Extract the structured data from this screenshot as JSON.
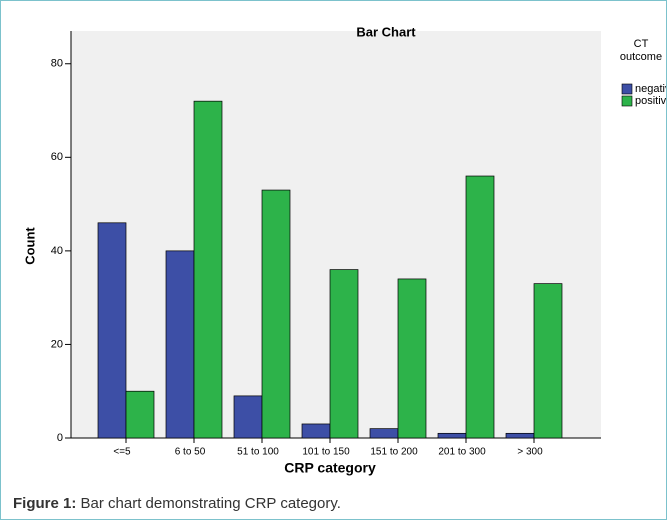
{
  "chart_data": {
    "type": "bar",
    "title": "Bar Chart",
    "x_label": "CRP category",
    "y_label": "Count",
    "categories": [
      "<=5",
      "6 to 50",
      "51 to 100",
      "101 to 150",
      "151 to 200",
      "201 to 300",
      "> 300"
    ],
    "legend_title": "CT outcome",
    "series": [
      {
        "name": "negative",
        "color": "#3d4fa6",
        "values": [
          46,
          40,
          9,
          3,
          2,
          1,
          1
        ]
      },
      {
        "name": "positive",
        "color": "#2db34a",
        "values": [
          10,
          72,
          53,
          36,
          34,
          56,
          33
        ]
      }
    ],
    "ylim": [
      0,
      87
    ],
    "yticks": [
      0,
      20,
      40,
      60,
      80
    ],
    "legend": "right"
  },
  "caption": {
    "label": "Figure 1:",
    "text": "Bar chart demonstrating CRP category."
  }
}
